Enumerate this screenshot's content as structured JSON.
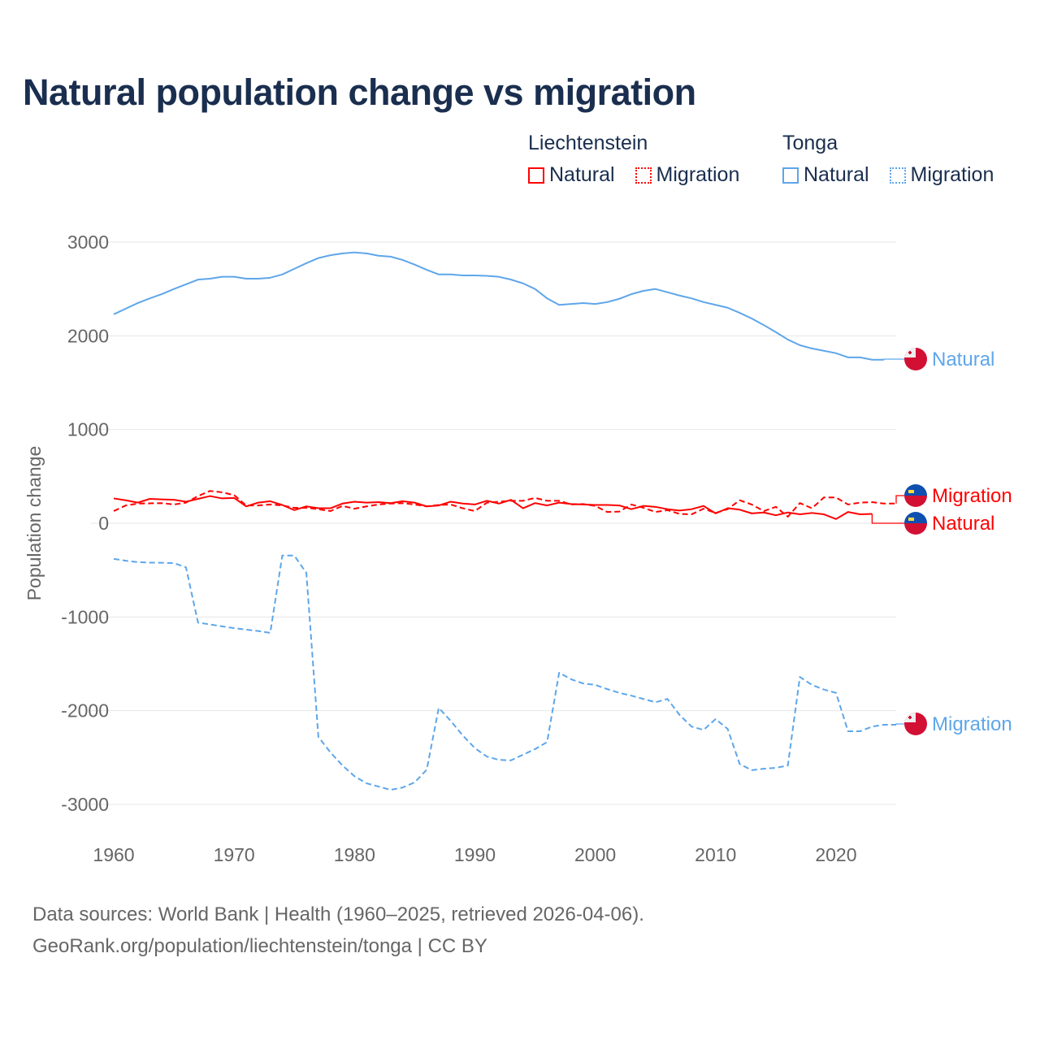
{
  "chart_data": {
    "type": "line",
    "title": "Natural population change vs migration",
    "xlabel": "",
    "ylabel": "Population change",
    "xlim": [
      1960,
      2025
    ],
    "ylim": [
      -3000,
      3000
    ],
    "xticks": [
      1960,
      1970,
      1980,
      1990,
      2000,
      2010,
      2020
    ],
    "yticks": [
      3000,
      2000,
      1000,
      0,
      -1000,
      -2000,
      -3000
    ],
    "grid": true,
    "legend": {
      "placement": "top-right",
      "groups": [
        {
          "name": "Liechtenstein",
          "items": [
            "Natural",
            "Migration"
          ]
        },
        {
          "name": "Tonga",
          "items": [
            "Natural",
            "Migration"
          ]
        }
      ]
    },
    "x_start": 1960,
    "series": [
      {
        "name": "Tonga Natural",
        "country": "Tonga",
        "label": "Natural",
        "color": "#5ea6ea",
        "dash": false,
        "values": [
          2230,
          2290,
          2350,
          2400,
          2446,
          2500,
          2550,
          2600,
          2610,
          2630,
          2630,
          2610,
          2610,
          2620,
          2655,
          2715,
          2775,
          2830,
          2860,
          2880,
          2890,
          2880,
          2855,
          2845,
          2810,
          2760,
          2705,
          2655,
          2655,
          2645,
          2645,
          2640,
          2630,
          2600,
          2560,
          2500,
          2400,
          2330,
          2340,
          2350,
          2340,
          2360,
          2395,
          2445,
          2480,
          2500,
          2465,
          2430,
          2400,
          2360,
          2330,
          2300,
          2245,
          2185,
          2115,
          2040,
          1960,
          1900,
          1865,
          1840,
          1815,
          1770,
          1770,
          1745,
          1745,
          null
        ]
      },
      {
        "name": "Tonga Migration",
        "country": "Tonga",
        "label": "Migration",
        "color": "#5ea6ea",
        "dash": true,
        "values": [
          -380,
          -400,
          -415,
          -420,
          -422,
          -425,
          -470,
          -1060,
          -1080,
          -1100,
          -1120,
          -1135,
          -1150,
          -1170,
          -345,
          -345,
          -530,
          -2280,
          -2445,
          -2585,
          -2700,
          -2775,
          -2810,
          -2845,
          -2820,
          -2765,
          -2630,
          -1970,
          -2110,
          -2265,
          -2400,
          -2490,
          -2525,
          -2530,
          -2470,
          -2410,
          -2335,
          -1595,
          -1665,
          -1710,
          -1725,
          -1770,
          -1810,
          -1840,
          -1875,
          -1910,
          -1875,
          -2045,
          -2170,
          -2205,
          -2090,
          -2195,
          -2570,
          -2635,
          -2620,
          -2610,
          -2585,
          -1640,
          -1725,
          -1775,
          -1810,
          -2220,
          -2220,
          -2170,
          -2150,
          -2150
        ]
      },
      {
        "name": "Liechtenstein Natural",
        "country": "Liechtenstein",
        "label": "Natural",
        "color": "#ff0000",
        "dash": false,
        "values": [
          265,
          245,
          220,
          260,
          255,
          250,
          230,
          260,
          290,
          265,
          270,
          180,
          220,
          235,
          195,
          140,
          180,
          160,
          160,
          210,
          230,
          220,
          225,
          215,
          235,
          220,
          180,
          190,
          230,
          210,
          200,
          240,
          210,
          250,
          160,
          215,
          190,
          220,
          205,
          200,
          195,
          195,
          190,
          150,
          185,
          175,
          150,
          135,
          150,
          185,
          105,
          160,
          145,
          105,
          115,
          85,
          115,
          95,
          110,
          95,
          45,
          120,
          95,
          100,
          null,
          null
        ]
      },
      {
        "name": "Liechtenstein Migration",
        "country": "Liechtenstein",
        "label": "Migration",
        "color": "#ff0000",
        "dash": true,
        "values": [
          130,
          190,
          210,
          212,
          215,
          200,
          220,
          290,
          345,
          330,
          300,
          190,
          190,
          200,
          190,
          165,
          165,
          150,
          130,
          185,
          155,
          180,
          200,
          210,
          215,
          200,
          180,
          195,
          200,
          160,
          130,
          220,
          230,
          240,
          240,
          270,
          240,
          240,
          200,
          205,
          185,
          120,
          125,
          200,
          165,
          120,
          140,
          100,
          95,
          155,
          110,
          150,
          245,
          200,
          130,
          175,
          70,
          215,
          160,
          275,
          275,
          200,
          220,
          225,
          210,
          210
        ]
      }
    ]
  },
  "legend_labels": {
    "liechtenstein": "Liechtenstein",
    "tonga": "Tonga",
    "natural": "Natural",
    "migration": "Migration"
  },
  "colors": {
    "liechtenstein": "#ff0000",
    "tonga": "#5ea6ea",
    "title": "#1a2e4f"
  },
  "footer": {
    "line1": "Data sources: World Bank | Health (1960–2025, retrieved 2026-04-06).",
    "line2": "GeoRank.org/population/liechtenstein/tonga | CC BY"
  }
}
